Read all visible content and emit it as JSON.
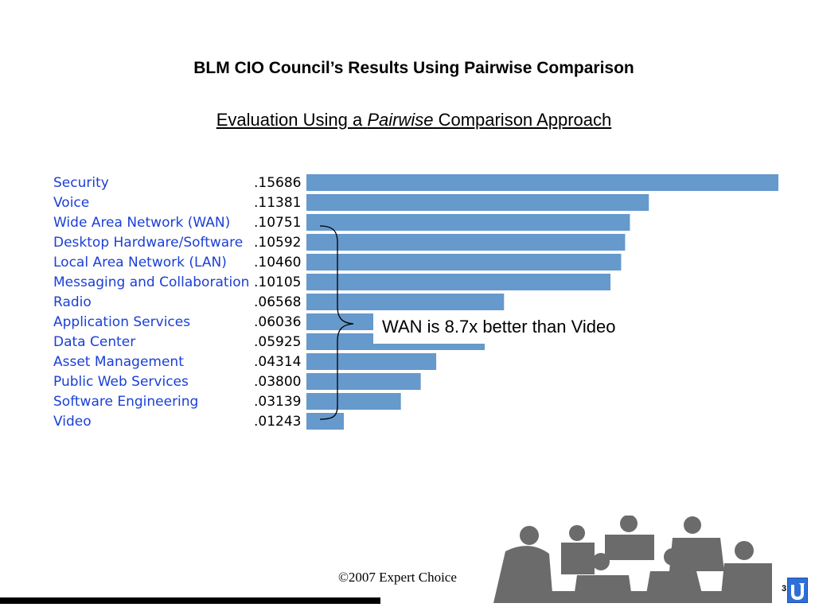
{
  "slide": {
    "title": "BLM CIO Council’s Results Using Pairwise Comparison",
    "subtitle_part1": "Evaluation Using a ",
    "subtitle_italic": "Pairwise",
    "subtitle_part2": " Comparison Approach",
    "callout": "WAN is 8.7x better than Video",
    "footer": "©2007 Expert Choice",
    "page_number": "3"
  },
  "colors": {
    "bar": "#6699cc",
    "category_label": "#1a3fd6"
  },
  "chart_data": {
    "type": "bar",
    "orientation": "horizontal",
    "categories": [
      "Security",
      "Voice",
      "Wide Area Network (WAN)",
      "Desktop Hardware/Software",
      "Local Area Network (LAN)",
      "Messaging and Collaboration",
      "Radio",
      "Application Services",
      "Data Center",
      "Asset Management",
      "Public Web Services",
      "Software Engineering",
      "Video"
    ],
    "values": [
      0.15686,
      0.11381,
      0.10751,
      0.10592,
      0.1046,
      0.10105,
      0.06568,
      0.06036,
      0.05925,
      0.04314,
      0.038,
      0.03139,
      0.01243
    ],
    "value_labels": [
      ".15686",
      ".11381",
      ".10751",
      ".10592",
      ".10460",
      ".10105",
      ".06568",
      ".06036",
      ".05925",
      ".04314",
      ".03800",
      ".03139",
      ".01243"
    ],
    "xlim": [
      0,
      0.15686
    ],
    "grid": false
  }
}
